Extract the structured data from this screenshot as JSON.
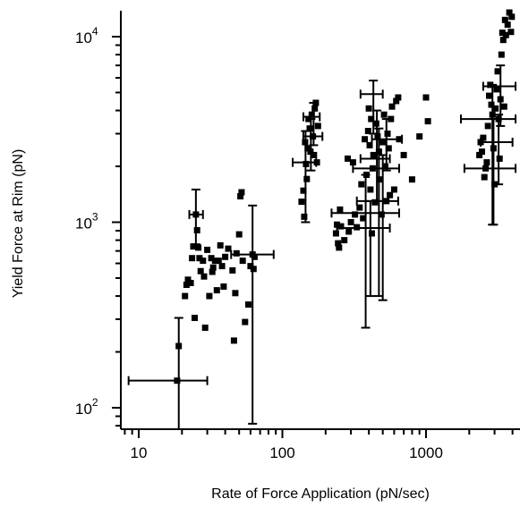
{
  "chart_data": {
    "type": "scatter",
    "title": "",
    "xlabel": "Rate of Force Application (pN/sec)",
    "ylabel": "Yield Force at Rim (pN)",
    "x_scale": "log",
    "y_scale": "log",
    "xlim": [
      8,
      4000
    ],
    "ylim": [
      75,
      15000
    ],
    "grid": false,
    "legend": "none",
    "marker_color": "#000000",
    "x_ticks": [
      {
        "value": 10,
        "label": "10"
      },
      {
        "value": 100,
        "label": "100"
      },
      {
        "value": 1000,
        "label": "1000"
      }
    ],
    "y_ticks": [
      {
        "value": 100,
        "base": "10",
        "exp": "2"
      },
      {
        "value": 1000,
        "base": "10",
        "exp": "3"
      },
      {
        "value": 10000,
        "base": "10",
        "exp": "4"
      }
    ],
    "series": [
      {
        "points": [
          [
            18.5,
            140
          ],
          [
            19,
            215
          ],
          [
            21,
            400
          ],
          [
            21.5,
            460
          ],
          [
            22,
            490
          ],
          [
            23,
            470
          ],
          [
            23.5,
            640
          ],
          [
            24,
            740
          ],
          [
            24.5,
            305
          ],
          [
            25,
            1100
          ],
          [
            25.5,
            905
          ],
          [
            26,
            730
          ],
          [
            26.5,
            640
          ],
          [
            27,
            545
          ],
          [
            28,
            620
          ],
          [
            28.5,
            510
          ],
          [
            29,
            270
          ],
          [
            30,
            710
          ],
          [
            31,
            400
          ],
          [
            32,
            640
          ],
          [
            32.5,
            540
          ],
          [
            33,
            570
          ],
          [
            34,
            620
          ],
          [
            35,
            430
          ],
          [
            36,
            620
          ],
          [
            37,
            750
          ],
          [
            38,
            580
          ],
          [
            39,
            450
          ],
          [
            40,
            650
          ],
          [
            42,
            720
          ],
          [
            45,
            550
          ],
          [
            46,
            230
          ],
          [
            47,
            415
          ],
          [
            48,
            680
          ],
          [
            50,
            860
          ],
          [
            51,
            1380
          ],
          [
            52,
            1450
          ],
          [
            53,
            620
          ],
          [
            55,
            290
          ],
          [
            58,
            360
          ],
          [
            60,
            580
          ],
          [
            62,
            670
          ],
          [
            63,
            560
          ],
          [
            64,
            650
          ],
          [
            136,
            1290
          ],
          [
            140,
            1480
          ],
          [
            142,
            1070
          ],
          [
            144,
            2700
          ],
          [
            146,
            2060
          ],
          [
            148,
            1710
          ],
          [
            150,
            2500
          ],
          [
            152,
            3600
          ],
          [
            155,
            3200
          ],
          [
            157,
            2400
          ],
          [
            160,
            3800
          ],
          [
            163,
            2900
          ],
          [
            166,
            2300
          ],
          [
            168,
            4100
          ],
          [
            171,
            4400
          ],
          [
            174,
            2100
          ],
          [
            177,
            3300
          ],
          [
            236,
            870
          ],
          [
            240,
            970
          ],
          [
            244,
            770
          ],
          [
            248,
            730
          ],
          [
            252,
            1170
          ],
          [
            256,
            950
          ],
          [
            270,
            800
          ],
          [
            285,
            2200
          ],
          [
            290,
            890
          ],
          [
            300,
            1000
          ],
          [
            310,
            2100
          ],
          [
            320,
            1100
          ],
          [
            330,
            940
          ],
          [
            345,
            1200
          ],
          [
            355,
            1600
          ],
          [
            365,
            1050
          ],
          [
            375,
            2800
          ],
          [
            385,
            1800
          ],
          [
            395,
            3100
          ],
          [
            400,
            4100
          ],
          [
            405,
            2600
          ],
          [
            410,
            1500
          ],
          [
            415,
            3600
          ],
          [
            420,
            870
          ],
          [
            425,
            1950
          ],
          [
            430,
            2300
          ],
          [
            440,
            1280
          ],
          [
            450,
            3400
          ],
          [
            460,
            2900
          ],
          [
            470,
            2400
          ],
          [
            480,
            1700
          ],
          [
            490,
            1100
          ],
          [
            500,
            2700
          ],
          [
            510,
            3800
          ],
          [
            520,
            2000
          ],
          [
            530,
            1300
          ],
          [
            540,
            3000
          ],
          [
            550,
            2500
          ],
          [
            560,
            1400
          ],
          [
            570,
            3600
          ],
          [
            580,
            4200
          ],
          [
            600,
            1500
          ],
          [
            620,
            4500
          ],
          [
            640,
            4700
          ],
          [
            650,
            2800
          ],
          [
            700,
            2300
          ],
          [
            800,
            1700
          ],
          [
            900,
            2900
          ],
          [
            1000,
            4700
          ],
          [
            1030,
            3500
          ],
          [
            2350,
            2300
          ],
          [
            2400,
            2700
          ],
          [
            2450,
            2400
          ],
          [
            2500,
            2850
          ],
          [
            2550,
            1750
          ],
          [
            2600,
            1950
          ],
          [
            2650,
            2100
          ],
          [
            2700,
            3300
          ],
          [
            2750,
            4800
          ],
          [
            2800,
            5500
          ],
          [
            2850,
            4300
          ],
          [
            2900,
            3800
          ],
          [
            2950,
            2500
          ],
          [
            3000,
            1600
          ],
          [
            3050,
            4100
          ],
          [
            3100,
            5200
          ],
          [
            3150,
            6500
          ],
          [
            3200,
            3600
          ],
          [
            3250,
            2200
          ],
          [
            3300,
            4600
          ],
          [
            3350,
            8000
          ],
          [
            3400,
            10500
          ],
          [
            3450,
            9600
          ],
          [
            3500,
            4200
          ],
          [
            3550,
            12300
          ],
          [
            3600,
            10200
          ],
          [
            3700,
            11600
          ],
          [
            3800,
            13500
          ],
          [
            3900,
            10600
          ],
          [
            3950,
            12800
          ]
        ]
      }
    ],
    "error_bars": [
      {
        "x": 19,
        "y": 140,
        "xlo": 8.5,
        "xhi": 30,
        "ylo": 75,
        "yhi": 305
      },
      {
        "x": 25,
        "y": 1100,
        "xlo": 22.5,
        "xhi": 28,
        "ylo": 760,
        "yhi": 1500
      },
      {
        "x": 62,
        "y": 670,
        "xlo": 44,
        "xhi": 87,
        "ylo": 82,
        "yhi": 1230
      },
      {
        "x": 145,
        "y": 2100,
        "xlo": 118,
        "xhi": 172,
        "ylo": 1000,
        "yhi": 3100
      },
      {
        "x": 158,
        "y": 2900,
        "xlo": 140,
        "xhi": 190,
        "ylo": 1900,
        "yhi": 3600
      },
      {
        "x": 165,
        "y": 3700,
        "xlo": 140,
        "xhi": 182,
        "ylo": 2600,
        "yhi": 4400
      },
      {
        "x": 380,
        "y": 1120,
        "xlo": 220,
        "xhi": 650,
        "ylo": 270,
        "yhi": 1800
      },
      {
        "x": 410,
        "y": 930,
        "xlo": 240,
        "xhi": 560,
        "ylo": 400,
        "yhi": 1300
      },
      {
        "x": 430,
        "y": 4900,
        "xlo": 350,
        "xhi": 500,
        "ylo": 3000,
        "yhi": 5800
      },
      {
        "x": 455,
        "y": 1950,
        "xlo": 310,
        "xhi": 650,
        "ylo": 1300,
        "yhi": 4000
      },
      {
        "x": 470,
        "y": 2200,
        "xlo": 350,
        "xhi": 560,
        "ylo": 400,
        "yhi": 3200
      },
      {
        "x": 500,
        "y": 1300,
        "xlo": 330,
        "xhi": 640,
        "ylo": 380,
        "yhi": 2300
      },
      {
        "x": 530,
        "y": 2800,
        "xlo": 420,
        "xhi": 680,
        "ylo": 1900,
        "yhi": 3600
      },
      {
        "x": 2900,
        "y": 3600,
        "xlo": 1750,
        "xhi": 4200,
        "ylo": 970,
        "yhi": 5500
      },
      {
        "x": 2950,
        "y": 1950,
        "xlo": 1850,
        "xhi": 4200,
        "ylo": 970,
        "yhi": 3600
      },
      {
        "x": 3200,
        "y": 2700,
        "xlo": 2400,
        "xhi": 4000,
        "ylo": 1600,
        "yhi": 3800
      },
      {
        "x": 3300,
        "y": 5400,
        "xlo": 2500,
        "xhi": 4200,
        "ylo": 3300,
        "yhi": 7000
      }
    ]
  }
}
